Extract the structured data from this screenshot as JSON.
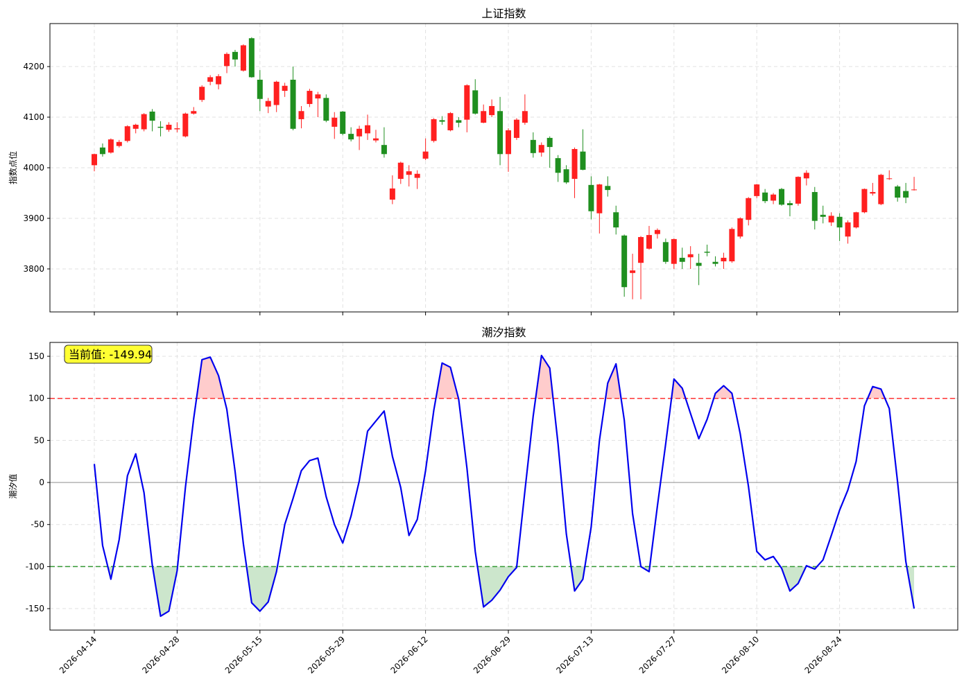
{
  "chart_data": [
    {
      "type": "candlestick",
      "title": "上证指数",
      "ylabel": "指数点位",
      "up_color": "#ff2020",
      "down_color": "#1f8f1f",
      "grid": true,
      "ylim": [
        3715,
        4285
      ],
      "yticks": [
        3800,
        3900,
        4000,
        4100,
        4200
      ],
      "open": [
        4005,
        4040,
        4030,
        4043,
        4053,
        4077,
        4076,
        4111,
        4081,
        4075,
        4076,
        4062,
        4107,
        4134,
        4170,
        4165,
        4201,
        4229,
        4192,
        4256,
        4174,
        4121,
        4124,
        4152,
        4174,
        4096,
        4126,
        4137,
        4138,
        4081,
        4111,
        4067,
        4062,
        4068,
        4054,
        4045,
        3937,
        3978,
        3986,
        3980,
        4018,
        4053,
        4094,
        4074,
        4094,
        4095,
        4153,
        4089,
        4104,
        4112,
        4027,
        4059,
        4089,
        4055,
        4030,
        4059,
        4019,
        3997,
        3978,
        4032,
        3966,
        3910,
        3964,
        3912,
        3866,
        3792,
        3812,
        3840,
        3869,
        3853,
        3810,
        3822,
        3823,
        3812,
        3834,
        3814,
        3815,
        3815,
        3864,
        3897,
        3944,
        3951,
        3935,
        3958,
        3930,
        3929,
        3979,
        3952,
        3907,
        3892,
        3903,
        3864,
        3882,
        3912,
        3949,
        3928,
        3978,
        3963,
        3954,
        3956
      ],
      "high": [
        4028,
        4048,
        4058,
        4055,
        4084,
        4087,
        4108,
        4116,
        4092,
        4090,
        4090,
        4109,
        4120,
        4163,
        4183,
        4185,
        4228,
        4233,
        4244,
        4258,
        4193,
        4138,
        4172,
        4168,
        4200,
        4122,
        4156,
        4150,
        4145,
        4110,
        4112,
        4080,
        4083,
        4105,
        4075,
        4080,
        3985,
        4012,
        4005,
        3995,
        4058,
        4098,
        4102,
        4110,
        4100,
        4165,
        4175,
        4125,
        4135,
        4140,
        4078,
        4098,
        4145,
        4070,
        4050,
        4062,
        4025,
        4005,
        4040,
        4076,
        3983,
        3968,
        3983,
        3925,
        3868,
        3830,
        3865,
        3885,
        3880,
        3860,
        3860,
        3842,
        3845,
        3830,
        3848,
        3825,
        3832,
        3882,
        3902,
        3942,
        3968,
        3958,
        3950,
        3960,
        3935,
        3983,
        3995,
        3962,
        3925,
        3912,
        3910,
        3896,
        3913,
        3959,
        3970,
        3988,
        3995,
        3966,
        3970,
        3982
      ],
      "low": [
        3993,
        4022,
        4028,
        4040,
        4050,
        4068,
        4072,
        4072,
        4062,
        4071,
        4070,
        4060,
        4105,
        4130,
        4163,
        4155,
        4187,
        4200,
        4190,
        4178,
        4112,
        4108,
        4110,
        4140,
        4074,
        4078,
        4120,
        4100,
        4090,
        4057,
        4064,
        4052,
        4035,
        4055,
        4050,
        4020,
        3928,
        3968,
        3963,
        3958,
        4015,
        4050,
        4085,
        4072,
        4080,
        4070,
        4105,
        4088,
        4100,
        4005,
        3992,
        4055,
        4085,
        4020,
        4022,
        4000,
        3972,
        3968,
        3940,
        3995,
        3898,
        3870,
        3943,
        3868,
        3745,
        3740,
        3740,
        3838,
        3860,
        3810,
        3800,
        3800,
        3800,
        3768,
        3825,
        3805,
        3800,
        3812,
        3860,
        3886,
        3940,
        3930,
        3928,
        3925,
        3904,
        3925,
        3965,
        3878,
        3890,
        3885,
        3855,
        3850,
        3880,
        3910,
        3945,
        3926,
        3976,
        3933,
        3930,
        3955
      ],
      "close": [
        4027,
        4027,
        4056,
        4051,
        4082,
        4085,
        4106,
        4093,
        4079,
        4085,
        4078,
        4107,
        4112,
        4160,
        4179,
        4181,
        4225,
        4214,
        4242,
        4179,
        4136,
        4132,
        4170,
        4162,
        4077,
        4112,
        4152,
        4145,
        4093,
        4099,
        4067,
        4056,
        4077,
        4084,
        4058,
        4027,
        3959,
        4010,
        3993,
        3988,
        4032,
        4096,
        4091,
        4108,
        4089,
        4163,
        4107,
        4112,
        4122,
        4027,
        4074,
        4095,
        4112,
        4029,
        4045,
        4041,
        3990,
        3971,
        4037,
        3996,
        3914,
        3967,
        3956,
        3882,
        3764,
        3797,
        3863,
        3867,
        3877,
        3814,
        3859,
        3814,
        3829,
        3806,
        3832,
        3810,
        3822,
        3879,
        3900,
        3940,
        3967,
        3934,
        3947,
        3927,
        3926,
        3982,
        3990,
        3895,
        3903,
        3905,
        3882,
        3892,
        3912,
        3958,
        3952,
        3986,
        3979,
        3941,
        3941,
        3957
      ]
    },
    {
      "type": "line",
      "title": "潮汐指数",
      "ylabel": "潮汐值",
      "color": "#0000ee",
      "grid": true,
      "annotation": "当前值: -149.94",
      "categories": [
        "2026-04-14",
        null,
        null,
        null,
        null,
        null,
        null,
        null,
        null,
        null,
        "2026-04-28",
        null,
        null,
        null,
        null,
        null,
        null,
        null,
        null,
        null,
        "2026-05-15",
        null,
        null,
        null,
        null,
        null,
        null,
        null,
        null,
        null,
        "2026-05-29",
        null,
        null,
        null,
        null,
        null,
        null,
        null,
        null,
        null,
        "2026-06-12",
        null,
        null,
        null,
        null,
        null,
        null,
        null,
        null,
        null,
        "2026-06-29",
        null,
        null,
        null,
        null,
        null,
        null,
        null,
        null,
        null,
        "2026-07-13",
        null,
        null,
        null,
        null,
        null,
        null,
        null,
        null,
        null,
        "2026-07-27",
        null,
        null,
        null,
        null,
        null,
        null,
        null,
        null,
        null,
        "2026-08-10",
        null,
        null,
        null,
        null,
        null,
        null,
        null,
        null,
        null,
        "2026-08-24",
        null,
        null,
        null,
        null,
        null,
        null,
        null,
        null,
        null
      ],
      "values": [
        22,
        -75,
        -115,
        -68,
        8,
        34,
        -12,
        -98,
        -159,
        -153,
        -105,
        -6,
        76,
        146,
        149,
        127,
        87,
        13,
        -73,
        -143,
        -153,
        -142,
        -106,
        -50,
        -19,
        14,
        26,
        29,
        -17,
        -50,
        -72,
        -40,
        2,
        61,
        73,
        85,
        31,
        -6,
        -63,
        -44,
        14,
        86,
        142,
        137,
        99,
        17,
        -82,
        -148,
        -140,
        -128,
        -112,
        -101,
        -10,
        79,
        151,
        136,
        46,
        -61,
        -129,
        -115,
        -53,
        50,
        118,
        141,
        74,
        -37,
        -100,
        -106,
        -28,
        46,
        123,
        112,
        82,
        52,
        75,
        106,
        115,
        106,
        58,
        -5,
        -82,
        -92,
        -88,
        -102,
        -129,
        -120,
        -99,
        -103,
        -92,
        -63,
        -33,
        -9,
        25,
        91,
        114,
        111,
        88,
        1,
        -94,
        -149.94
      ],
      "ylim": [
        -175.5,
        166.5
      ],
      "yticks": [
        -150,
        -100,
        -50,
        0,
        50,
        100,
        150
      ],
      "hlines": [
        {
          "value": 100,
          "color": "#ff3333",
          "dashed": true,
          "fill": "#ffcccc",
          "fill_side": "above"
        },
        {
          "value": -100,
          "color": "#339933",
          "dashed": true,
          "fill": "#cce6cc",
          "fill_side": "below"
        },
        {
          "value": 0,
          "color": "#999999",
          "dashed": false
        }
      ]
    }
  ]
}
